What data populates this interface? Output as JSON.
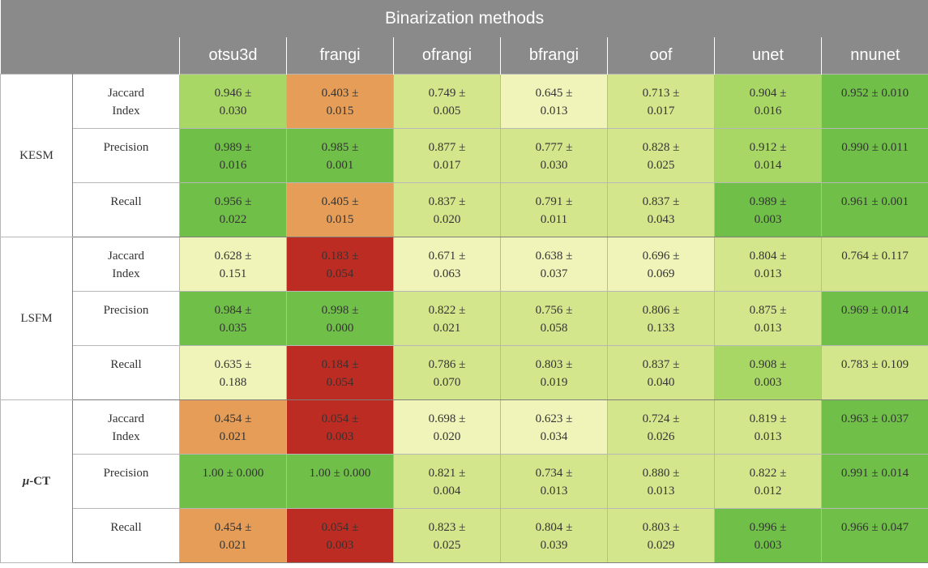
{
  "title": "Binarization methods",
  "methods": [
    "otsu3d",
    "frangi",
    "ofrangi",
    "bfrangi",
    "oof",
    "unet",
    "nnunet"
  ],
  "colors": {
    "header_bg": "#8a8a8a",
    "dark_green": "#70bf48",
    "green": "#a9d766",
    "light_green": "#d4e68b",
    "pale_yellow": "#f1f4b8",
    "orange": "#e59d57",
    "red": "#bd2c22"
  },
  "groups": [
    {
      "name": "KESM",
      "rows": [
        {
          "metric": [
            "Jaccard",
            "Index"
          ],
          "cells": [
            {
              "text": [
                "0.946 ±",
                "0.030"
              ],
              "color": "#a9d766"
            },
            {
              "text": [
                "0.403 ±",
                "0.015"
              ],
              "color": "#e59d57"
            },
            {
              "text": [
                "0.749 ±",
                "0.005"
              ],
              "color": "#d4e68b"
            },
            {
              "text": [
                "0.645 ±",
                "0.013"
              ],
              "color": "#f1f4b8"
            },
            {
              "text": [
                "0.713 ±",
                "0.017"
              ],
              "color": "#d4e68b"
            },
            {
              "text": [
                "0.904 ±",
                "0.016"
              ],
              "color": "#a9d766"
            },
            {
              "text": [
                "0.952 ± 0.010"
              ],
              "color": "#70bf48"
            }
          ]
        },
        {
          "metric": [
            "Precision"
          ],
          "cells": [
            {
              "text": [
                "0.989 ±",
                "0.016"
              ],
              "color": "#70bf48"
            },
            {
              "text": [
                "0.985 ±",
                "0.001"
              ],
              "color": "#70bf48"
            },
            {
              "text": [
                "0.877 ±",
                "0.017"
              ],
              "color": "#d4e68b"
            },
            {
              "text": [
                "0.777 ±",
                "0.030"
              ],
              "color": "#d4e68b"
            },
            {
              "text": [
                "0.828 ±",
                "0.025"
              ],
              "color": "#d4e68b"
            },
            {
              "text": [
                "0.912 ±",
                "0.014"
              ],
              "color": "#a9d766"
            },
            {
              "text": [
                "0.990 ± 0.011"
              ],
              "color": "#70bf48"
            }
          ]
        },
        {
          "metric": [
            "Recall"
          ],
          "cells": [
            {
              "text": [
                "0.956 ±",
                "0.022"
              ],
              "color": "#70bf48"
            },
            {
              "text": [
                "0.405 ±",
                "0.015"
              ],
              "color": "#e59d57"
            },
            {
              "text": [
                "0.837 ±",
                "0.020"
              ],
              "color": "#d4e68b"
            },
            {
              "text": [
                "0.791 ±",
                "0.011"
              ],
              "color": "#d4e68b"
            },
            {
              "text": [
                "0.837 ±",
                "0.043"
              ],
              "color": "#d4e68b"
            },
            {
              "text": [
                "0.989 ±",
                "0.003"
              ],
              "color": "#70bf48"
            },
            {
              "text": [
                "0.961 ± 0.001"
              ],
              "color": "#70bf48"
            }
          ]
        }
      ]
    },
    {
      "name": "LSFM",
      "rows": [
        {
          "metric": [
            "Jaccard",
            "Index"
          ],
          "cells": [
            {
              "text": [
                "0.628 ±",
                "0.151"
              ],
              "color": "#f1f4b8"
            },
            {
              "text": [
                "0.183 ±",
                "0.054"
              ],
              "color": "#bd2c22"
            },
            {
              "text": [
                "0.671 ±",
                "0.063"
              ],
              "color": "#f1f4b8"
            },
            {
              "text": [
                "0.638 ±",
                "0.037"
              ],
              "color": "#f1f4b8"
            },
            {
              "text": [
                "0.696 ±",
                "0.069"
              ],
              "color": "#f1f4b8"
            },
            {
              "text": [
                "0.804 ±",
                "0.013"
              ],
              "color": "#d4e68b"
            },
            {
              "text": [
                "0.764 ± 0.117"
              ],
              "color": "#d4e68b"
            }
          ]
        },
        {
          "metric": [
            "Precision"
          ],
          "cells": [
            {
              "text": [
                "0.984 ±",
                "0.035"
              ],
              "color": "#70bf48"
            },
            {
              "text": [
                "0.998 ±",
                "0.000"
              ],
              "color": "#70bf48"
            },
            {
              "text": [
                "0.822 ±",
                "0.021"
              ],
              "color": "#d4e68b"
            },
            {
              "text": [
                "0.756 ±",
                "0.058"
              ],
              "color": "#d4e68b"
            },
            {
              "text": [
                "0.806 ±",
                "0.133"
              ],
              "color": "#d4e68b"
            },
            {
              "text": [
                "0.875 ±",
                "0.013"
              ],
              "color": "#d4e68b"
            },
            {
              "text": [
                "0.969 ± 0.014"
              ],
              "color": "#70bf48"
            }
          ]
        },
        {
          "metric": [
            "Recall"
          ],
          "cells": [
            {
              "text": [
                "0.635 ±",
                "0.188"
              ],
              "color": "#f1f4b8"
            },
            {
              "text": [
                "0.184 ±",
                "0.054"
              ],
              "color": "#bd2c22"
            },
            {
              "text": [
                "0.786 ±",
                "0.070"
              ],
              "color": "#d4e68b"
            },
            {
              "text": [
                "0.803 ±",
                "0.019"
              ],
              "color": "#d4e68b"
            },
            {
              "text": [
                "0.837 ±",
                "0.040"
              ],
              "color": "#d4e68b"
            },
            {
              "text": [
                "0.908 ±",
                "0.003"
              ],
              "color": "#a9d766"
            },
            {
              "text": [
                "0.783 ± 0.109"
              ],
              "color": "#d4e68b"
            }
          ]
        }
      ]
    },
    {
      "name_prefix": "μ",
      "name": "-CT",
      "rows": [
        {
          "metric": [
            "Jaccard",
            "Index"
          ],
          "cells": [
            {
              "text": [
                "0.454 ±",
                "0.021"
              ],
              "color": "#e59d57"
            },
            {
              "text": [
                "0.054 ±",
                "0.003"
              ],
              "color": "#bd2c22"
            },
            {
              "text": [
                "0.698 ±",
                "0.020"
              ],
              "color": "#f1f4b8"
            },
            {
              "text": [
                "0.623 ±",
                "0.034"
              ],
              "color": "#f1f4b8"
            },
            {
              "text": [
                "0.724 ±",
                "0.026"
              ],
              "color": "#d4e68b"
            },
            {
              "text": [
                "0.819 ±",
                "0.013"
              ],
              "color": "#d4e68b"
            },
            {
              "text": [
                "0.963 ± 0.037"
              ],
              "color": "#70bf48"
            }
          ]
        },
        {
          "metric": [
            "Precision"
          ],
          "cells": [
            {
              "text": [
                "1.00 ± 0.000"
              ],
              "color": "#70bf48"
            },
            {
              "text": [
                "1.00 ± 0.000"
              ],
              "color": "#70bf48"
            },
            {
              "text": [
                "0.821 ±",
                "0.004"
              ],
              "color": "#d4e68b"
            },
            {
              "text": [
                "0.734 ±",
                "0.013"
              ],
              "color": "#d4e68b"
            },
            {
              "text": [
                "0.880 ±",
                "0.013"
              ],
              "color": "#d4e68b"
            },
            {
              "text": [
                "0.822 ±",
                "0.012"
              ],
              "color": "#d4e68b"
            },
            {
              "text": [
                "0.991 ± 0.014"
              ],
              "color": "#70bf48"
            }
          ]
        },
        {
          "metric": [
            "Recall"
          ],
          "cells": [
            {
              "text": [
                "0.454 ±",
                "0.021"
              ],
              "color": "#e59d57"
            },
            {
              "text": [
                "0.054 ±",
                "0.003"
              ],
              "color": "#bd2c22"
            },
            {
              "text": [
                "0.823 ±",
                "0.025"
              ],
              "color": "#d4e68b"
            },
            {
              "text": [
                "0.804 ±",
                "0.039"
              ],
              "color": "#d4e68b"
            },
            {
              "text": [
                "0.803 ±",
                "0.029"
              ],
              "color": "#d4e68b"
            },
            {
              "text": [
                "0.996 ±",
                "0.003"
              ],
              "color": "#70bf48"
            },
            {
              "text": [
                "0.966 ± 0.047"
              ],
              "color": "#70bf48"
            }
          ]
        }
      ]
    }
  ]
}
